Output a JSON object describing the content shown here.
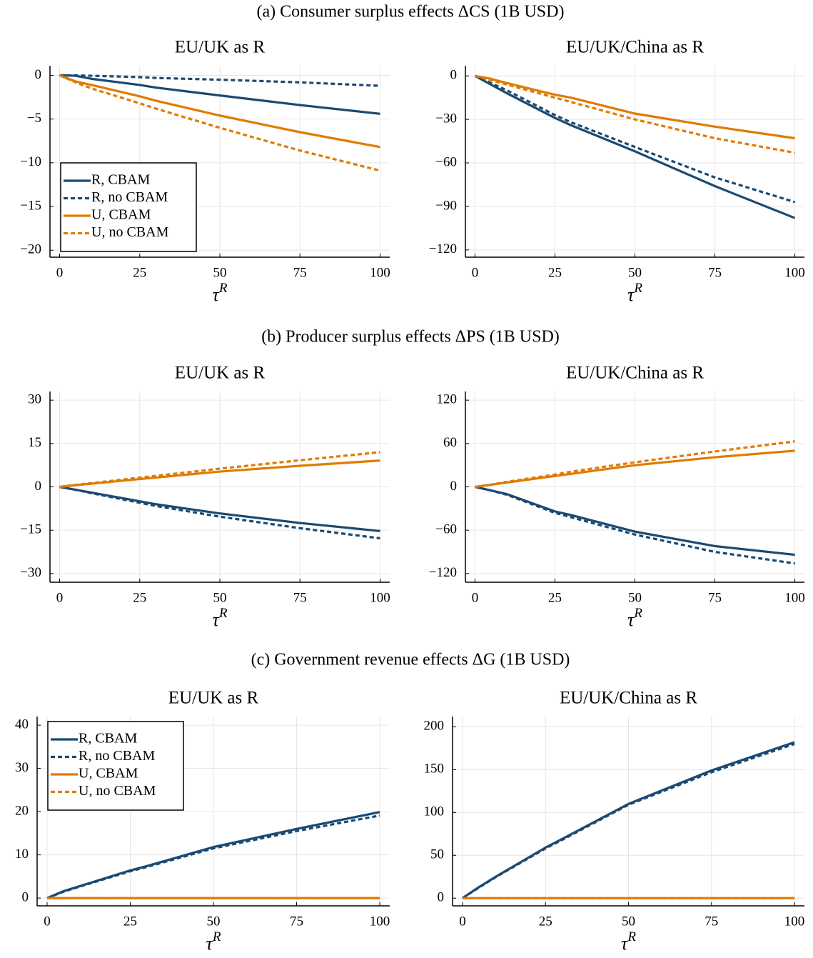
{
  "headings": [
    "(a) Consumer surplus effects ΔCS (1B USD)",
    "(b) Producer surplus effects ΔPS (1B USD)",
    "(c) Government revenue effects ΔG (1B USD)"
  ],
  "chart_data": [
    {
      "type": "line",
      "title": "EU/UK as R",
      "xlabel_base": "τ",
      "xlabel_sup": "R",
      "x": [
        0,
        5,
        10,
        25,
        30,
        50,
        75,
        100
      ],
      "xlim": [
        -3,
        103
      ],
      "xticks": [
        0,
        25,
        50,
        75,
        100
      ],
      "ylim": [
        -20.8,
        1.1
      ],
      "yticks": [
        0,
        {
          "value": -5,
          "label": "−5"
        },
        {
          "value": -10,
          "label": "−10"
        },
        {
          "value": -15,
          "label": "−15"
        },
        {
          "value": -20,
          "label": "−20"
        }
      ],
      "grid": true,
      "legend": "lower left",
      "series": [
        {
          "name": "R, CBAM",
          "color": "#1b4a72",
          "style": "solid",
          "values": [
            0,
            -0.05,
            -0.4,
            -1.1,
            -1.4,
            -2.3,
            -3.4,
            -4.4
          ]
        },
        {
          "name": "R, no CBAM",
          "color": "#1b4a72",
          "style": "dashed",
          "values": [
            0,
            0,
            -0.05,
            -0.2,
            -0.3,
            -0.5,
            -0.8,
            -1.2
          ]
        },
        {
          "name": "U, CBAM",
          "color": "#e07b00",
          "style": "solid",
          "values": [
            0,
            -0.7,
            -1.1,
            -2.4,
            -2.9,
            -4.6,
            -6.5,
            -8.2
          ]
        },
        {
          "name": "U, no CBAM",
          "color": "#e07b00",
          "style": "dashed",
          "values": [
            0,
            -0.8,
            -1.5,
            -3.2,
            -3.8,
            -6,
            -8.6,
            -10.9
          ]
        }
      ]
    },
    {
      "type": "line",
      "title": "EU/UK/China as R",
      "xlabel_base": "τ",
      "xlabel_sup": "R",
      "x": [
        0,
        5,
        10,
        25,
        30,
        50,
        75,
        100
      ],
      "xlim": [
        -3,
        103
      ],
      "xticks": [
        0,
        25,
        50,
        75,
        100
      ],
      "ylim": [
        -125,
        7
      ],
      "yticks": [
        0,
        {
          "value": -30,
          "label": "−30"
        },
        {
          "value": -60,
          "label": "−60"
        },
        {
          "value": -90,
          "label": "−90"
        },
        {
          "value": -120,
          "label": "−120"
        }
      ],
      "grid": true,
      "series": [
        {
          "color": "#1b4a72",
          "style": "solid",
          "values": [
            0,
            -6,
            -12,
            -29,
            -34,
            -52,
            -76,
            -98
          ]
        },
        {
          "color": "#1b4a72",
          "style": "dashed",
          "values": [
            0,
            -5,
            -10,
            -27,
            -32,
            -49,
            -70,
            -87
          ]
        },
        {
          "color": "#e07b00",
          "style": "solid",
          "values": [
            0,
            -2,
            -5,
            -13,
            -15,
            -26,
            -35,
            -43
          ]
        },
        {
          "color": "#e07b00",
          "style": "dashed",
          "values": [
            0,
            -3,
            -6,
            -15,
            -18,
            -30,
            -43,
            -53
          ]
        }
      ]
    },
    {
      "type": "line",
      "title": "EU/UK as R",
      "xlabel_base": "τ",
      "xlabel_sup": "R",
      "x": [
        0,
        5,
        10,
        25,
        30,
        50,
        75,
        100
      ],
      "xlim": [
        -3,
        103
      ],
      "xticks": [
        0,
        25,
        50,
        75,
        100
      ],
      "ylim": [
        -33,
        33
      ],
      "yticks": [
        {
          "value": -30,
          "label": "−30"
        },
        {
          "value": -15,
          "label": "−15"
        },
        0,
        15,
        30
      ],
      "grid": true,
      "series": [
        {
          "color": "#1b4a72",
          "style": "solid",
          "values": [
            0,
            -1,
            -2,
            -5,
            -6,
            -9.2,
            -12.5,
            -15.3
          ]
        },
        {
          "color": "#1b4a72",
          "style": "dashed",
          "values": [
            0,
            -1,
            -2.2,
            -5.5,
            -6.6,
            -10.3,
            -14.3,
            -17.8
          ]
        },
        {
          "color": "#e07b00",
          "style": "solid",
          "values": [
            0,
            0.6,
            1.1,
            2.7,
            3.2,
            5.3,
            7.3,
            9.1
          ]
        },
        {
          "color": "#e07b00",
          "style": "dashed",
          "values": [
            0,
            0.7,
            1.3,
            3.2,
            3.8,
            6.3,
            9.2,
            12
          ]
        }
      ]
    },
    {
      "type": "line",
      "title": "EU/UK/China as R",
      "xlabel_base": "τ",
      "xlabel_sup": "R",
      "x": [
        0,
        5,
        10,
        25,
        30,
        50,
        75,
        100
      ],
      "xlim": [
        -3,
        103
      ],
      "xticks": [
        0,
        25,
        50,
        75,
        100
      ],
      "ylim": [
        -132,
        132
      ],
      "yticks": [
        {
          "value": -120,
          "label": "−120"
        },
        {
          "value": -60,
          "label": "−60"
        },
        0,
        60,
        120
      ],
      "grid": true,
      "series": [
        {
          "color": "#1b4a72",
          "style": "solid",
          "values": [
            0,
            -5,
            -10,
            -34,
            -39,
            -62,
            -82,
            -94
          ]
        },
        {
          "color": "#1b4a72",
          "style": "dashed",
          "values": [
            0,
            -5,
            -11,
            -36,
            -42,
            -66,
            -90,
            -106
          ]
        },
        {
          "color": "#e07b00",
          "style": "solid",
          "values": [
            0,
            3,
            6,
            15,
            18,
            30,
            41,
            50
          ]
        },
        {
          "color": "#e07b00",
          "style": "dashed",
          "values": [
            0,
            3,
            7,
            17,
            21,
            34,
            49,
            63
          ]
        }
      ]
    },
    {
      "type": "line",
      "title": "EU/UK as R",
      "xlabel_base": "τ",
      "xlabel_sup": "R",
      "x": [
        0,
        5,
        10,
        25,
        30,
        50,
        75,
        100
      ],
      "xlim": [
        -3,
        103
      ],
      "xticks": [
        0,
        25,
        50,
        75,
        100
      ],
      "ylim": [
        -1.8,
        42
      ],
      "yticks": [
        0,
        10,
        20,
        30,
        40
      ],
      "grid": true,
      "legend": "upper left",
      "series": [
        {
          "name": "R, CBAM",
          "color": "#1b4a72",
          "style": "solid",
          "values": [
            0,
            1.6,
            2.8,
            6.4,
            7.4,
            11.8,
            16,
            19.9
          ]
        },
        {
          "name": "R, no CBAM",
          "color": "#1b4a72",
          "style": "dashed",
          "values": [
            0,
            1.5,
            2.7,
            6.2,
            7.2,
            11.5,
            15.5,
            19.1
          ]
        },
        {
          "name": "U, CBAM",
          "color": "#e07b00",
          "style": "solid",
          "values": [
            0,
            0,
            0,
            0,
            0,
            0,
            0,
            0
          ]
        },
        {
          "name": "U, no CBAM",
          "color": "#e07b00",
          "style": "dashed",
          "values": [
            0,
            0,
            0,
            0,
            0,
            0,
            0,
            0
          ]
        }
      ]
    },
    {
      "type": "line",
      "title": "EU/UK/China as R",
      "xlabel_base": "τ",
      "xlabel_sup": "R",
      "x": [
        0,
        5,
        10,
        25,
        30,
        50,
        75,
        100
      ],
      "xlim": [
        -3,
        103
      ],
      "xticks": [
        0,
        25,
        50,
        75,
        100
      ],
      "ylim": [
        -9,
        212
      ],
      "yticks": [
        0,
        50,
        100,
        150,
        200
      ],
      "grid": true,
      "series": [
        {
          "color": "#1b4a72",
          "style": "solid",
          "values": [
            0,
            13,
            25,
            59,
            69,
            110,
            149,
            182
          ]
        },
        {
          "color": "#1b4a72",
          "style": "dashed",
          "values": [
            0,
            12.5,
            24.5,
            58,
            68,
            109,
            147,
            180
          ]
        },
        {
          "color": "#e07b00",
          "style": "solid",
          "values": [
            0,
            0,
            0,
            0,
            0,
            0,
            0,
            0
          ]
        },
        {
          "color": "#e07b00",
          "style": "dashed",
          "values": [
            0,
            0,
            0,
            0,
            0,
            0,
            0,
            0
          ]
        }
      ]
    }
  ]
}
